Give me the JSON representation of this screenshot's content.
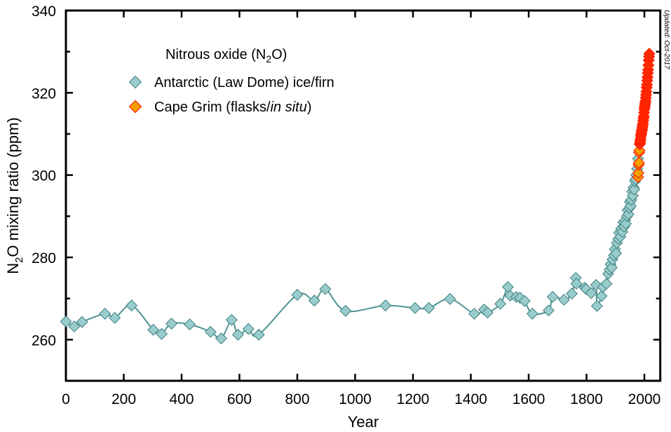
{
  "chart_data": {
    "type": "scatter",
    "title": "",
    "xlabel": "Year",
    "ylabel": {
      "prefix": "N",
      "sub": "2",
      "suffix": "O mixing ratio (ppm)"
    },
    "xlim": [
      0,
      2055
    ],
    "ylim": [
      250,
      340
    ],
    "xticks": [
      0,
      200,
      400,
      600,
      800,
      1000,
      1200,
      1400,
      1600,
      1800,
      2000
    ],
    "yticks": [
      260,
      280,
      300,
      320,
      340
    ],
    "grid": false,
    "legend": {
      "placement": "top-left",
      "title": {
        "prefix": "Nitrous oxide (N",
        "sub": "2",
        "suffix": "O)"
      },
      "entries": [
        {
          "label": "Antarctic (Law Dome) ice/firn"
        },
        {
          "label_plain": "Cape Grim (flasks/",
          "label_italic": "in situ",
          "label_end": ")"
        }
      ]
    },
    "annotation": "Updated: Oct-2017",
    "colors": {
      "lawdome_fill": "#99cccc",
      "lawdome_stroke": "#3f7f7f",
      "spline": "#4f9393",
      "capegrim_fill_early": "#f5a000",
      "capegrim_fill": "#ff2a00",
      "capegrim_stroke": "#ff2000"
    },
    "series": [
      {
        "name": "Antarctic (Law Dome) ice/firn",
        "x": [
          0,
          29,
          56,
          135,
          169,
          227,
          302,
          331,
          365,
          428,
          500,
          537,
          573,
          595,
          631,
          667,
          800,
          859,
          897,
          967,
          1105,
          1207,
          1255,
          1328,
          1412,
          1446,
          1458,
          1502,
          1528,
          1536,
          1557,
          1570,
          1586,
          1613,
          1669,
          1683,
          1722,
          1749,
          1763,
          1765,
          1794,
          1799,
          1816,
          1836,
          1833,
          1852,
          1857,
          1869,
          1875,
          1880,
          1883,
          1887,
          1890,
          1895,
          1898,
          1902,
          1905,
          1910,
          1913,
          1917,
          1920,
          1924,
          1927,
          1930,
          1933,
          1936,
          1940,
          1942,
          1945,
          1948,
          1950,
          1953,
          1955,
          1958,
          1960,
          1963,
          1965,
          1968,
          1970,
          1972,
          1975,
          1978
        ],
        "y": [
          264.4,
          263.2,
          264.3,
          266.3,
          265.3,
          268.3,
          262.4,
          261.4,
          263.9,
          263.7,
          261.9,
          260.3,
          264.8,
          261.2,
          262.6,
          261.2,
          270.9,
          269.5,
          272.3,
          267.0,
          268.3,
          267.7,
          267.7,
          269.9,
          266.3,
          267.3,
          266.6,
          268.7,
          272.8,
          270.7,
          270.4,
          270.2,
          269.4,
          266.3,
          267.1,
          270.4,
          269.7,
          271.2,
          275.0,
          273.6,
          272.6,
          272.3,
          271.3,
          268.2,
          273.3,
          270.6,
          272.8,
          273.6,
          276.0,
          277.0,
          278.3,
          277.5,
          279.5,
          280.5,
          282.0,
          281.0,
          283.5,
          284.5,
          286.0,
          285.0,
          287.0,
          286.2,
          288.5,
          287.5,
          289.0,
          288.2,
          290.0,
          291.5,
          290.5,
          292.0,
          293.5,
          292.5,
          294.0,
          296.0,
          295.0,
          297.0,
          296.5,
          298.5,
          299.0,
          300.0,
          301.5,
          304.0
        ]
      },
      {
        "name": "Cape Grim (flasks/in situ)",
        "x": [
          1978,
          1979,
          1980,
          1981,
          1982,
          1983,
          1984,
          1985,
          1986,
          1987,
          1988,
          1989,
          1990,
          1991,
          1992,
          1993,
          1994,
          1995,
          1996,
          1997,
          1998,
          1999,
          2000,
          2001,
          2002,
          2003,
          2004,
          2005,
          2006,
          2007,
          2008,
          2009,
          2010,
          2011,
          2012,
          2013,
          2014,
          2015,
          2016,
          2017
        ],
        "y": [
          299.5,
          300.5,
          302.5,
          303.0,
          305.5,
          306.0,
          307.5,
          307.8,
          308.3,
          308.8,
          309.5,
          309.9,
          310.3,
          310.8,
          311.0,
          311.5,
          312.0,
          312.5,
          313.2,
          313.8,
          314.3,
          315.2,
          316.0,
          316.5,
          317.0,
          317.5,
          318.0,
          318.8,
          319.5,
          320.3,
          321.3,
          322.0,
          323.0,
          323.8,
          324.8,
          325.6,
          326.7,
          327.9,
          328.8,
          329.5
        ]
      }
    ]
  }
}
